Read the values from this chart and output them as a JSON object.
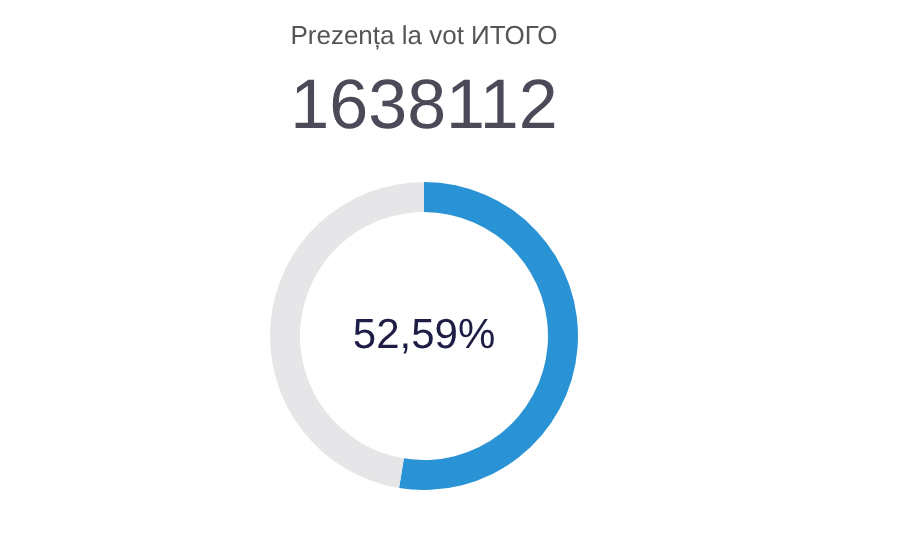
{
  "chart_data": {
    "type": "donut",
    "title": "Prezența la vot ИТОГО",
    "subtitle": "1638112",
    "categories": [
      null,
      null
    ],
    "values": [
      52.59,
      47.41
    ],
    "colors": [
      "#2a93d5",
      "#e6e6e8"
    ],
    "annotations": [
      "52,59%"
    ]
  }
}
